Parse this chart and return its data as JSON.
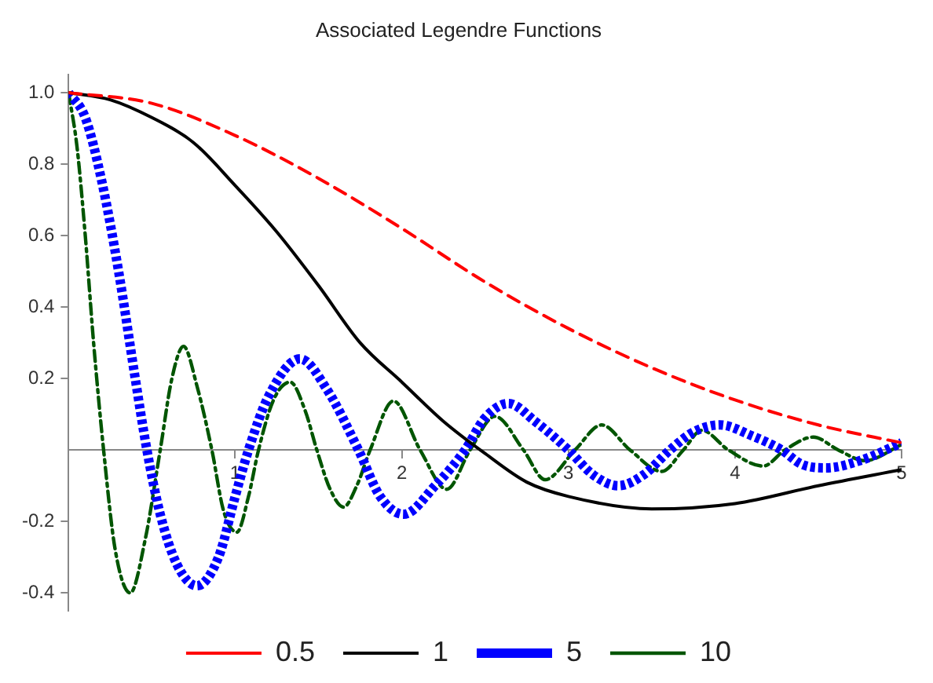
{
  "chart_data": {
    "type": "line",
    "title": "Associated Legendre Functions",
    "xlim": [
      0,
      5
    ],
    "xticks": [
      1,
      2,
      3,
      4,
      5
    ],
    "ylim": [
      -0.45,
      1.05
    ],
    "yticks": [
      {
        "value": -0.4,
        "label": "-0.4"
      },
      {
        "value": -0.2,
        "label": "-0.2"
      },
      {
        "value": 0.2,
        "label": "0.2"
      },
      {
        "value": 0.4,
        "label": "0.4"
      },
      {
        "value": 0.6,
        "label": "0.6"
      },
      {
        "value": 0.8,
        "label": "0.8"
      },
      {
        "value": 1.0,
        "label": "1.0"
      }
    ],
    "grid": false,
    "legend": "bottom",
    "marker": "none",
    "series": [
      {
        "name": "0.5",
        "color": "#ff0000",
        "line_style": "dashed",
        "x": [
          0,
          0.5,
          1,
          1.5,
          2,
          2.5,
          3,
          3.5,
          4,
          4.5,
          5
        ],
        "values": [
          1,
          0.97,
          0.88,
          0.76,
          0.62,
          0.47,
          0.34,
          0.23,
          0.14,
          0.07,
          0.02
        ]
      },
      {
        "name": "1",
        "color": "#000000",
        "line_style": "solid",
        "x": [
          0,
          0.25,
          0.5,
          0.75,
          1,
          1.25,
          1.5,
          1.75,
          2,
          2.25,
          2.5,
          2.75,
          3,
          3.5,
          4,
          4.5,
          5
        ],
        "values": [
          1,
          0.98,
          0.93,
          0.86,
          0.74,
          0.61,
          0.46,
          0.3,
          0.19,
          0.08,
          -0.01,
          -0.09,
          -0.13,
          -0.165,
          -0.15,
          -0.1,
          -0.055
        ]
      },
      {
        "name": "5",
        "color": "#0000ff",
        "line_style": "dotted",
        "x": [
          0,
          0.1,
          0.2,
          0.3,
          0.4,
          0.47,
          0.55,
          0.65,
          0.77,
          0.9,
          1,
          1.08,
          1.2,
          1.39,
          1.55,
          1.74,
          1.87,
          2.01,
          2.2,
          2.38,
          2.5,
          2.64,
          2.8,
          3,
          3.15,
          3.3,
          3.45,
          3.61,
          3.75,
          3.91,
          4.1,
          4.28,
          4.4,
          4.55,
          4.75,
          5
        ],
        "values": [
          1,
          0.93,
          0.75,
          0.5,
          0.2,
          0,
          -0.18,
          -0.32,
          -0.38,
          -0.3,
          -0.13,
          0,
          0.15,
          0.255,
          0.17,
          0,
          -0.13,
          -0.18,
          -0.1,
          0,
          0.09,
          0.13,
          0.08,
          0,
          -0.07,
          -0.1,
          -0.07,
          0,
          0.05,
          0.07,
          0.04,
          0,
          -0.04,
          -0.05,
          -0.03,
          0.02
        ]
      },
      {
        "name": "10",
        "color": "#005500",
        "line_style": "dashdot",
        "x": [
          0,
          0.05,
          0.1,
          0.15,
          0.21,
          0.28,
          0.37,
          0.46,
          0.55,
          0.62,
          0.69,
          0.77,
          0.86,
          0.93,
          1.01,
          1.08,
          1.14,
          1.23,
          1.33,
          1.42,
          1.49,
          1.57,
          1.65,
          1.73,
          1.81,
          1.95,
          2.11,
          2.27,
          2.41,
          2.56,
          2.73,
          2.86,
          3.04,
          3.2,
          3.37,
          3.56,
          3.69,
          3.8,
          3.96,
          4.17,
          4.3,
          4.47,
          4.62,
          4.78,
          5
        ],
        "values": [
          1,
          0.85,
          0.6,
          0.3,
          0,
          -0.28,
          -0.4,
          -0.25,
          0,
          0.2,
          0.29,
          0.18,
          0,
          -0.17,
          -0.23,
          -0.13,
          0,
          0.14,
          0.19,
          0.11,
          0,
          -0.11,
          -0.16,
          -0.1,
          0,
          0.137,
          0,
          -0.11,
          0,
          0.094,
          0,
          -0.083,
          0,
          0.07,
          0,
          -0.06,
          0,
          0.055,
          0,
          -0.045,
          0,
          0.036,
          0,
          -0.03,
          0.015
        ]
      }
    ]
  }
}
